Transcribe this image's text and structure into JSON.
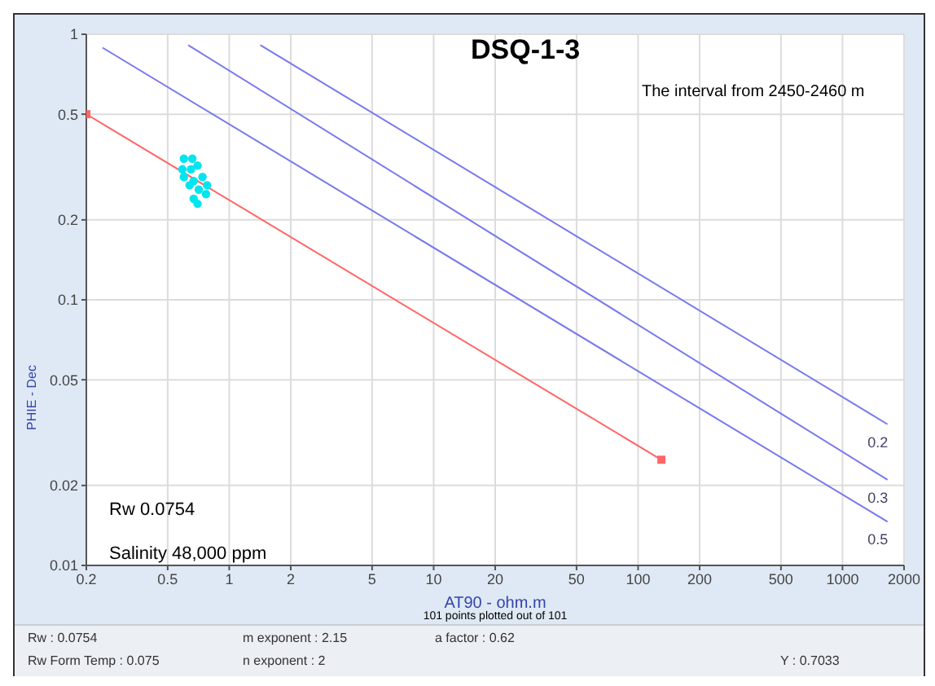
{
  "chart_data": {
    "type": "scatter",
    "title": "DSQ-1-3",
    "subtitle": "The interval from 2450-2460  m",
    "xlabel": "AT90 - ohm.m",
    "ylabel": "PHIE - Dec",
    "annotations": [
      "Rw  0.0754",
      "Salinity 48,000 ppm",
      "101 points plotted out of 101",
      "Rw : 0.0754",
      "m exponent : 2.15",
      "a factor : 0.62",
      "Rw Form Temp : 0.075",
      "n exponent : 2",
      "Y : 0.7033"
    ],
    "log": "xy",
    "grid": true,
    "legend": false,
    "xlim": [
      0.2,
      2000
    ],
    "xticks": [
      0.2,
      0.5,
      1,
      2,
      5,
      10,
      20,
      50,
      100,
      200,
      500,
      1000,
      2000
    ],
    "ylim": [
      0.01,
      1
    ],
    "yticks": [
      0.01,
      0.02,
      0.05,
      0.1,
      0.2,
      0.5,
      1
    ],
    "series": [
      {
        "color": "#00e5ee",
        "marker": "circle",
        "x": [
          0.6,
          0.66,
          0.7,
          0.59,
          0.65,
          0.74,
          0.6,
          0.67,
          0.78,
          0.64,
          0.71,
          0.67,
          0.7,
          0.77
        ],
        "values": [
          0.34,
          0.34,
          0.32,
          0.31,
          0.31,
          0.29,
          0.29,
          0.28,
          0.27,
          0.27,
          0.26,
          0.24,
          0.23,
          0.25
        ]
      },
      {
        "type": "line",
        "color": "#ff6666",
        "marker": "square",
        "x": [
          0.2,
          130
        ],
        "values": [
          0.5,
          0.025
        ]
      },
      {
        "type": "line",
        "name": "0.5",
        "color": "#7777ee",
        "marker": "none",
        "x": [
          0.24,
          1660
        ],
        "values": [
          0.89,
          0.0146
        ]
      },
      {
        "type": "line",
        "name": "0.3",
        "color": "#7777ee",
        "marker": "none",
        "x": [
          0.63,
          1660
        ],
        "values": [
          0.91,
          0.021
        ]
      },
      {
        "type": "line",
        "name": "0.2",
        "color": "#7777ee",
        "marker": "none",
        "x": [
          1.42,
          1660
        ],
        "values": [
          0.91,
          0.034
        ]
      }
    ]
  }
}
